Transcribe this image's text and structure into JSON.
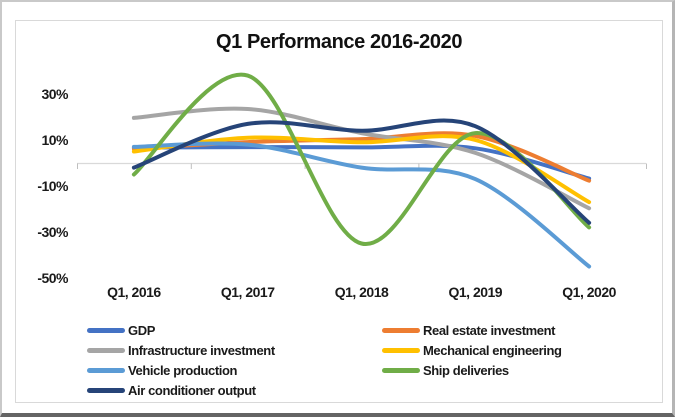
{
  "chart_data": {
    "type": "line",
    "title": "Q1 Performance 2016-2020",
    "categories": [
      "Q1, 2016",
      "Q1, 2017",
      "Q1, 2018",
      "Q1, 2019",
      "Q1, 2020"
    ],
    "unit": "%",
    "y_ticks": [
      {
        "value": 30,
        "label": "30%"
      },
      {
        "value": 10,
        "label": "10%"
      },
      {
        "value": -10,
        "label": "-10%"
      },
      {
        "value": -30,
        "label": "-30%"
      },
      {
        "value": -50,
        "label": "-50%"
      }
    ],
    "ylim": [
      -55,
      42
    ],
    "grid": "zero-line-only",
    "line_style": "smoothed",
    "legend_position": "bottom-two-columns",
    "series": [
      {
        "name": "GDP",
        "color": "#4472C4",
        "values": [
          6.7,
          6.9,
          6.8,
          6.4,
          -6.8
        ]
      },
      {
        "name": "Real estate investment",
        "color": "#ED7D31",
        "values": [
          6.2,
          9.1,
          10.4,
          11.8,
          -7.7
        ]
      },
      {
        "name": "Infrastructure investment",
        "color": "#A5A5A5",
        "values": [
          19.6,
          23.5,
          13.0,
          4.4,
          -19.7
        ]
      },
      {
        "name": "Mechanical engineering",
        "color": "#FFC000",
        "values": [
          5.0,
          11.0,
          9.0,
          10.0,
          -17.0
        ]
      },
      {
        "name": "Vehicle production",
        "color": "#5B9BD5",
        "values": [
          7.0,
          8.0,
          -2.0,
          -7.0,
          -45.0
        ]
      },
      {
        "name": "Ship deliveries",
        "color": "#70AD47",
        "values": [
          -5.0,
          38.0,
          -35.0,
          13.0,
          -28.0
        ]
      },
      {
        "name": "Air conditioner output",
        "color": "#264478",
        "values": [
          -2.0,
          17.0,
          14.0,
          16.0,
          -26.0
        ]
      }
    ],
    "axis_colors": {
      "gridline": "#d9d9d9",
      "tick": "#bfbfbf"
    }
  }
}
